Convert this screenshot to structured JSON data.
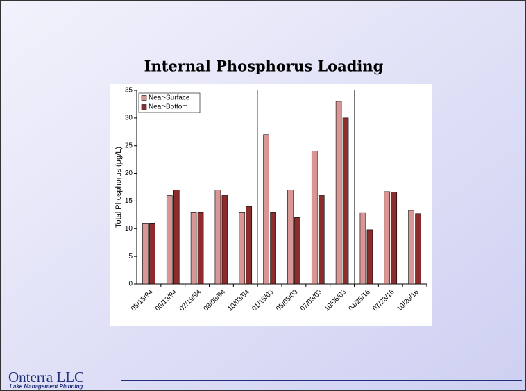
{
  "chart_data": {
    "type": "bar",
    "title": "Internal Phosphorus Loading",
    "ylabel": "Total Phosphorus (µg/L)",
    "categories": [
      "05/15/94",
      "06/13/94",
      "07/19/94",
      "08/08/94",
      "10/03/94",
      "01/15/03",
      "05/05/03",
      "07/08/03",
      "10/06/03",
      "04/25/16",
      "07/28/16",
      "10/20/16"
    ],
    "series": [
      {
        "name": "Near-Surface",
        "color": "#d99694",
        "values": [
          11,
          16,
          13,
          17,
          13,
          27,
          17,
          24,
          33,
          12.9,
          16.7,
          13.3
        ]
      },
      {
        "name": "Near-Bottom",
        "color": "#8c2d2d",
        "values": [
          11,
          17,
          13,
          16,
          14,
          13,
          12,
          16,
          30,
          9.8,
          16.6,
          12.7
        ]
      }
    ],
    "ylim": [
      0,
      35
    ],
    "yticks": [
      0,
      5,
      10,
      15,
      20,
      25,
      30,
      35
    ],
    "legend": "top-left"
  },
  "footer": {
    "company": "Onterra LLC",
    "tagline": "Lake Management Planning"
  }
}
